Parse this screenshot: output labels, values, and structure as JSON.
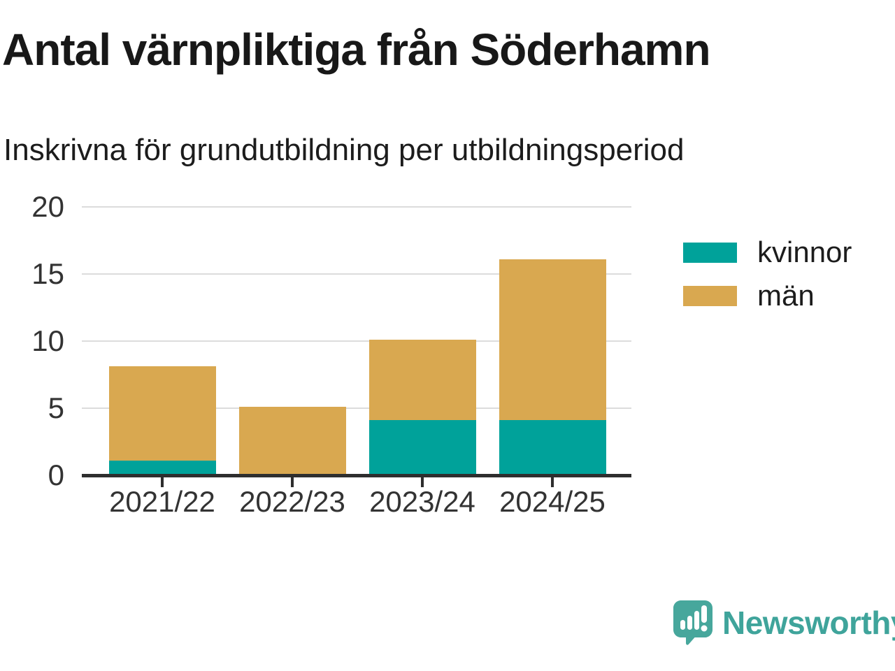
{
  "chart_data": {
    "type": "bar",
    "stacked": true,
    "title": "Antal värnpliktiga från Söderhamn",
    "subtitle": "Inskrivna för grundutbildning per utbildningsperiod",
    "categories": [
      "2021/22",
      "2022/23",
      "2023/24",
      "2024/25"
    ],
    "series": [
      {
        "name": "kvinnor",
        "color": "#00a29a",
        "values": [
          1,
          0,
          4,
          4
        ]
      },
      {
        "name": "män",
        "color": "#d9a850",
        "values": [
          7,
          5,
          6,
          12
        ]
      }
    ],
    "totals": [
      8,
      5,
      10,
      16
    ],
    "xlabel": "",
    "ylabel": "",
    "ylim": [
      0,
      20
    ],
    "yticks": [
      0,
      5,
      10,
      15,
      20
    ],
    "grid": "horizontal",
    "legend_position": "right"
  },
  "footer": {
    "brand": "Newsworthy",
    "brand_color": "#3fa49b",
    "logo_icon": "speech-bubble-bar-chart"
  }
}
